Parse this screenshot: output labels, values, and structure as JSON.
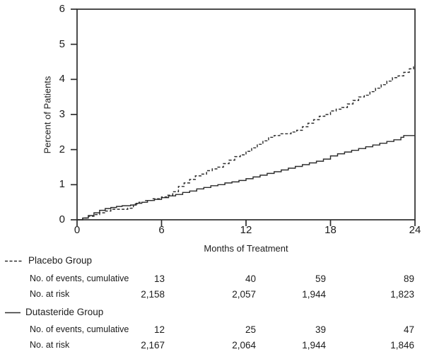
{
  "colors": {
    "line": "#2d2d2d",
    "axis": "#2d2d2d",
    "text": "#1c1c1c",
    "background": "#ffffff"
  },
  "chart_data": {
    "type": "line",
    "subtype": "kaplan-meier-step",
    "title": "",
    "xlabel": "Months of Treatment",
    "ylabel": "Percent of Patients",
    "xlim": [
      0,
      24
    ],
    "ylim": [
      0,
      6
    ],
    "x_ticks": [
      0,
      6,
      12,
      18,
      24
    ],
    "y_ticks": [
      0,
      1,
      2,
      3,
      4,
      5,
      6
    ],
    "grid": false,
    "frame": true,
    "legend_position": "below-left",
    "series": [
      {
        "name": "Placebo Group",
        "style": "dashed",
        "points": [
          [
            0,
            0
          ],
          [
            0.4,
            0.05
          ],
          [
            0.8,
            0.1
          ],
          [
            1.2,
            0.15
          ],
          [
            1.6,
            0.2
          ],
          [
            2,
            0.25
          ],
          [
            2.4,
            0.3
          ],
          [
            3.6,
            0.33
          ],
          [
            4,
            0.45
          ],
          [
            4.4,
            0.5
          ],
          [
            4.8,
            0.55
          ],
          [
            5.4,
            0.6
          ],
          [
            6,
            0.65
          ],
          [
            6.4,
            0.7
          ],
          [
            6.8,
            0.8
          ],
          [
            7.2,
            0.95
          ],
          [
            7.6,
            1.05
          ],
          [
            8,
            1.15
          ],
          [
            8.4,
            1.25
          ],
          [
            8.8,
            1.3
          ],
          [
            9.2,
            1.4
          ],
          [
            9.6,
            1.45
          ],
          [
            10,
            1.5
          ],
          [
            10.4,
            1.6
          ],
          [
            10.8,
            1.7
          ],
          [
            11.2,
            1.8
          ],
          [
            11.6,
            1.85
          ],
          [
            12,
            1.95
          ],
          [
            12.4,
            2.05
          ],
          [
            12.8,
            2.15
          ],
          [
            13.2,
            2.25
          ],
          [
            13.6,
            2.35
          ],
          [
            14,
            2.4
          ],
          [
            14.4,
            2.45
          ],
          [
            15.2,
            2.5
          ],
          [
            15.6,
            2.55
          ],
          [
            16,
            2.65
          ],
          [
            16.4,
            2.75
          ],
          [
            16.8,
            2.85
          ],
          [
            17.2,
            2.95
          ],
          [
            17.6,
            3.0
          ],
          [
            18,
            3.1
          ],
          [
            18.4,
            3.15
          ],
          [
            18.8,
            3.2
          ],
          [
            19.2,
            3.3
          ],
          [
            19.6,
            3.4
          ],
          [
            20,
            3.5
          ],
          [
            20.4,
            3.55
          ],
          [
            20.8,
            3.65
          ],
          [
            21.2,
            3.75
          ],
          [
            21.6,
            3.85
          ],
          [
            22,
            3.95
          ],
          [
            22.4,
            4.05
          ],
          [
            22.8,
            4.1
          ],
          [
            23.2,
            4.2
          ],
          [
            23.6,
            4.3
          ],
          [
            23.9,
            4.4
          ],
          [
            24,
            4.4
          ]
        ]
      },
      {
        "name": "Dutasteride Group",
        "style": "solid",
        "points": [
          [
            0,
            0
          ],
          [
            0.4,
            0.05
          ],
          [
            0.8,
            0.12
          ],
          [
            1.2,
            0.2
          ],
          [
            1.6,
            0.27
          ],
          [
            2,
            0.32
          ],
          [
            2.4,
            0.35
          ],
          [
            2.8,
            0.38
          ],
          [
            3.2,
            0.4
          ],
          [
            3.8,
            0.42
          ],
          [
            4.2,
            0.47
          ],
          [
            4.6,
            0.5
          ],
          [
            5,
            0.55
          ],
          [
            5.5,
            0.58
          ],
          [
            6,
            0.63
          ],
          [
            6.5,
            0.68
          ],
          [
            7,
            0.72
          ],
          [
            7.5,
            0.78
          ],
          [
            8,
            0.82
          ],
          [
            8.5,
            0.88
          ],
          [
            9,
            0.92
          ],
          [
            9.5,
            0.97
          ],
          [
            10,
            1.0
          ],
          [
            10.5,
            1.05
          ],
          [
            11,
            1.08
          ],
          [
            11.5,
            1.12
          ],
          [
            12,
            1.17
          ],
          [
            12.5,
            1.22
          ],
          [
            13,
            1.27
          ],
          [
            13.5,
            1.32
          ],
          [
            14,
            1.37
          ],
          [
            14.5,
            1.42
          ],
          [
            15,
            1.47
          ],
          [
            15.5,
            1.52
          ],
          [
            16,
            1.57
          ],
          [
            16.5,
            1.62
          ],
          [
            17,
            1.67
          ],
          [
            17.5,
            1.73
          ],
          [
            18,
            1.82
          ],
          [
            18.5,
            1.88
          ],
          [
            19,
            1.93
          ],
          [
            19.5,
            1.98
          ],
          [
            20,
            2.03
          ],
          [
            20.5,
            2.08
          ],
          [
            21,
            2.13
          ],
          [
            21.5,
            2.18
          ],
          [
            22,
            2.23
          ],
          [
            22.5,
            2.28
          ],
          [
            23,
            2.35
          ],
          [
            23.2,
            2.4
          ],
          [
            24,
            2.4
          ]
        ]
      }
    ]
  },
  "risk_table": {
    "timepoints": [
      6,
      12,
      18,
      24
    ],
    "groups": [
      {
        "name": "Placebo Group",
        "marker": "dashed",
        "rows": [
          {
            "label": "No. of events, cumulative",
            "values": [
              "13",
              "40",
              "59",
              "89"
            ]
          },
          {
            "label": "No. at risk",
            "values": [
              "2,158",
              "2,057",
              "1,944",
              "1,823"
            ]
          }
        ]
      },
      {
        "name": "Dutasteride Group",
        "marker": "solid",
        "rows": [
          {
            "label": "No. of events, cumulative",
            "values": [
              "12",
              "25",
              "39",
              "47"
            ]
          },
          {
            "label": "No. at risk",
            "values": [
              "2,167",
              "2,064",
              "1,944",
              "1,846"
            ]
          }
        ]
      }
    ]
  }
}
